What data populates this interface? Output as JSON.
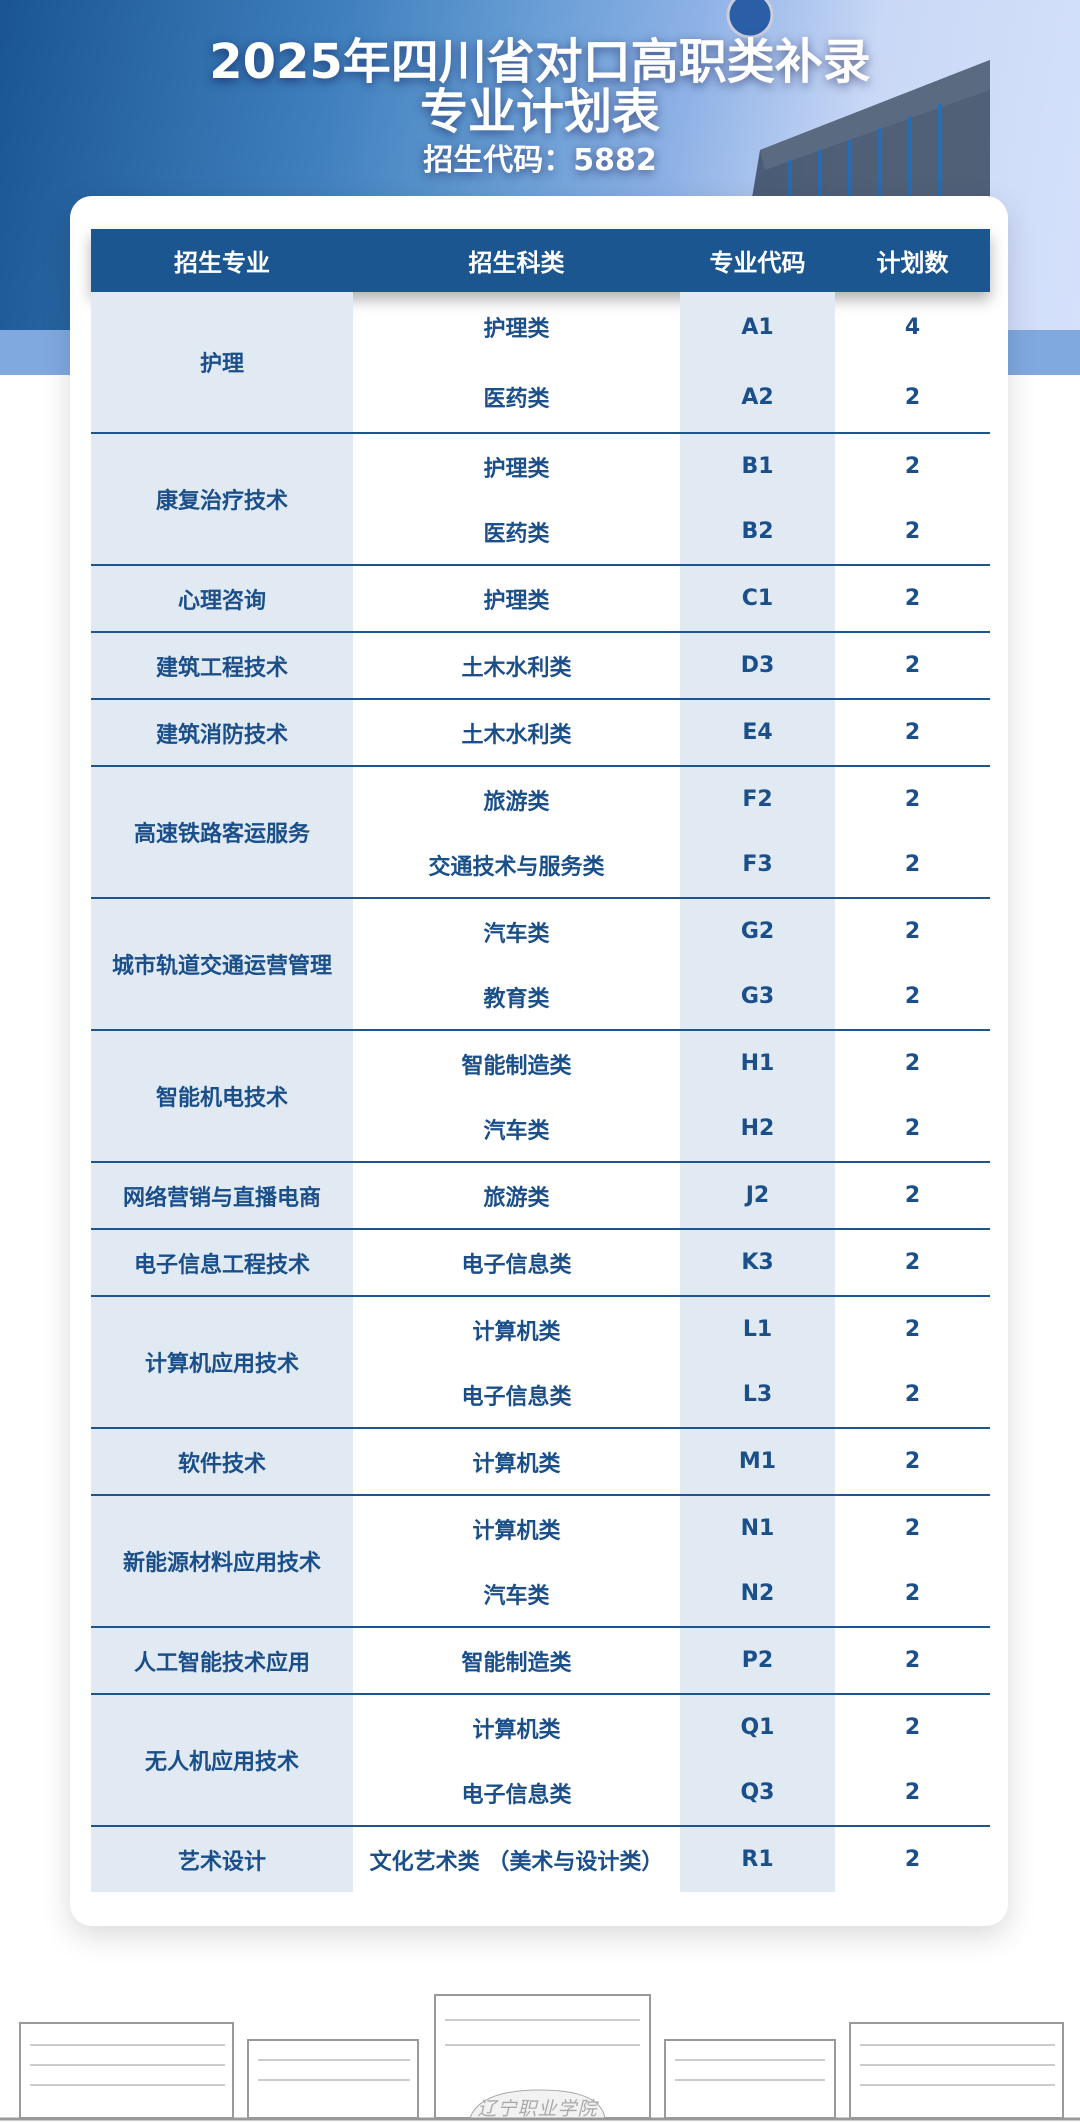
{
  "header": {
    "title_line1": "2025年四川省对口高职类补录",
    "title_line2": "专业计划表",
    "code_line": "招生代码：5882"
  },
  "table": {
    "columns": [
      "招生专业",
      "招生科类",
      "专业代码",
      "计划数"
    ],
    "groups": [
      {
        "major": "护理",
        "rows": [
          {
            "category": "护理类",
            "code": "A1",
            "count": "4"
          },
          {
            "category": "医药类",
            "code": "A2",
            "count": "2"
          }
        ]
      },
      {
        "major": "康复治疗技术",
        "rows": [
          {
            "category": "护理类",
            "code": "B1",
            "count": "2"
          },
          {
            "category": "医药类",
            "code": "B2",
            "count": "2"
          }
        ]
      },
      {
        "major": "心理咨询",
        "rows": [
          {
            "category": "护理类",
            "code": "C1",
            "count": "2"
          }
        ]
      },
      {
        "major": "建筑工程技术",
        "rows": [
          {
            "category": "土木水利类",
            "code": "D3",
            "count": "2"
          }
        ]
      },
      {
        "major": "建筑消防技术",
        "rows": [
          {
            "category": "土木水利类",
            "code": "E4",
            "count": "2"
          }
        ]
      },
      {
        "major": "高速铁路客运服务",
        "rows": [
          {
            "category": "旅游类",
            "code": "F2",
            "count": "2"
          },
          {
            "category": "交通技术与服务类",
            "code": "F3",
            "count": "2"
          }
        ]
      },
      {
        "major": "城市轨道交通运营管理",
        "rows": [
          {
            "category": "汽车类",
            "code": "G2",
            "count": "2"
          },
          {
            "category": "教育类",
            "code": "G3",
            "count": "2"
          }
        ]
      },
      {
        "major": "智能机电技术",
        "rows": [
          {
            "category": "智能制造类",
            "code": "H1",
            "count": "2"
          },
          {
            "category": "汽车类",
            "code": "H2",
            "count": "2"
          }
        ]
      },
      {
        "major": "网络营销与直播电商",
        "rows": [
          {
            "category": "旅游类",
            "code": "J2",
            "count": "2"
          }
        ]
      },
      {
        "major": "电子信息工程技术",
        "rows": [
          {
            "category": "电子信息类",
            "code": "K3",
            "count": "2"
          }
        ]
      },
      {
        "major": "计算机应用技术",
        "rows": [
          {
            "category": "计算机类",
            "code": "L1",
            "count": "2"
          },
          {
            "category": "电子信息类",
            "code": "L3",
            "count": "2"
          }
        ]
      },
      {
        "major": "软件技术",
        "rows": [
          {
            "category": "计算机类",
            "code": "M1",
            "count": "2"
          }
        ]
      },
      {
        "major": "新能源材料应用技术",
        "rows": [
          {
            "category": "计算机类",
            "code": "N1",
            "count": "2"
          },
          {
            "category": "汽车类",
            "code": "N2",
            "count": "2"
          }
        ]
      },
      {
        "major": "人工智能技术应用",
        "rows": [
          {
            "category": "智能制造类",
            "code": "P2",
            "count": "2"
          }
        ]
      },
      {
        "major": "无人机应用技术",
        "rows": [
          {
            "category": "计算机类",
            "code": "Q1",
            "count": "2"
          },
          {
            "category": "电子信息类",
            "code": "Q3",
            "count": "2"
          }
        ]
      },
      {
        "major": "艺术设计",
        "rows": [
          {
            "category": "文化艺术类 （美术与设计类）",
            "code": "R1",
            "count": "2"
          }
        ]
      }
    ]
  },
  "footer": {
    "sign_text": "辽宁职业学院"
  },
  "colors": {
    "primary": "#1b5690",
    "cell_bg": "#e1e9f2",
    "text": "#1b4f8a",
    "band": "#80a9e0"
  }
}
